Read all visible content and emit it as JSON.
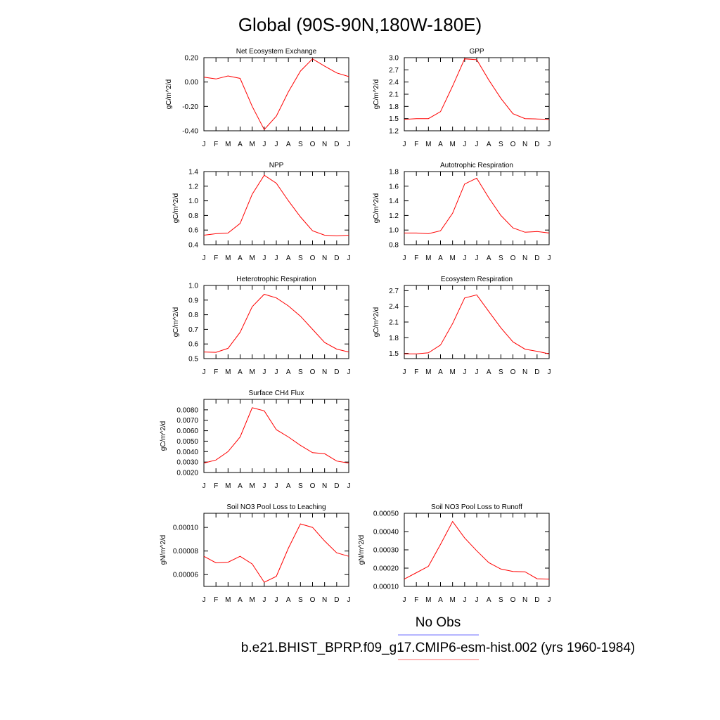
{
  "title": "Global (90S-90N,180W-180E)",
  "legend": [
    {
      "label": "No Obs",
      "color": "#6b6bff"
    },
    {
      "label": "b.e21.BHIST_BPRP.f09_g17.CMIP6-esm-hist.002 (yrs 1960-1984)",
      "color": "#ff6b6b"
    }
  ],
  "months": [
    "J",
    "F",
    "M",
    "A",
    "M",
    "J",
    "J",
    "A",
    "S",
    "O",
    "N",
    "D",
    "J"
  ],
  "line_color": "#ff0000",
  "chart_data": [
    {
      "type": "line",
      "title": "Net Ecosystem Exchange",
      "ylabel": "gC/m^2/d",
      "ylim": [
        -0.4,
        0.2
      ],
      "yticks": [
        "0.20",
        "0.00",
        "-0.20",
        "-0.40"
      ],
      "ytick_values": [
        0.2,
        0.0,
        -0.2,
        -0.4
      ],
      "values": [
        0.04,
        0.025,
        0.05,
        0.03,
        -0.2,
        -0.39,
        -0.28,
        -0.08,
        0.09,
        0.19,
        0.13,
        0.075,
        0.045
      ]
    },
    {
      "type": "line",
      "title": "GPP",
      "ylabel": "gC/m^2/d",
      "ylim": [
        1.2,
        3.0
      ],
      "yticks": [
        "3.0",
        "2.7",
        "2.4",
        "2.1",
        "1.8",
        "1.5",
        "1.2"
      ],
      "ytick_values": [
        3.0,
        2.7,
        2.4,
        2.1,
        1.8,
        1.5,
        1.2
      ],
      "values": [
        1.48,
        1.5,
        1.5,
        1.67,
        2.3,
        2.97,
        2.95,
        2.45,
        2.0,
        1.62,
        1.5,
        1.49,
        1.48
      ]
    },
    {
      "type": "line",
      "title": "NPP",
      "ylabel": "gC/m^2/d",
      "ylim": [
        0.4,
        1.4
      ],
      "yticks": [
        "1.4",
        "1.2",
        "1.0",
        "0.8",
        "0.6",
        "0.4"
      ],
      "ytick_values": [
        1.4,
        1.2,
        1.0,
        0.8,
        0.6,
        0.4
      ],
      "values": [
        0.53,
        0.55,
        0.56,
        0.69,
        1.09,
        1.35,
        1.24,
        1.0,
        0.78,
        0.59,
        0.53,
        0.52,
        0.53
      ]
    },
    {
      "type": "line",
      "title": "Autotrophic Respiration",
      "ylabel": "gC/m^2/d",
      "ylim": [
        0.8,
        1.8
      ],
      "yticks": [
        "1.8",
        "1.6",
        "1.4",
        "1.2",
        "1.0",
        "0.8"
      ],
      "ytick_values": [
        1.8,
        1.6,
        1.4,
        1.2,
        1.0,
        0.8
      ],
      "values": [
        0.96,
        0.96,
        0.95,
        0.99,
        1.23,
        1.63,
        1.71,
        1.44,
        1.2,
        1.03,
        0.97,
        0.98,
        0.96
      ]
    },
    {
      "type": "line",
      "title": "Heterotrophic Respiration",
      "ylabel": "gC/m^2/d",
      "ylim": [
        0.5,
        1.0
      ],
      "yticks": [
        "1.0",
        "0.9",
        "0.8",
        "0.7",
        "0.6",
        "0.5"
      ],
      "ytick_values": [
        1.0,
        0.9,
        0.8,
        0.7,
        0.6,
        0.5
      ],
      "values": [
        0.545,
        0.543,
        0.57,
        0.68,
        0.855,
        0.94,
        0.915,
        0.86,
        0.79,
        0.7,
        0.61,
        0.565,
        0.545
      ]
    },
    {
      "type": "line",
      "title": "Ecosystem Respiration",
      "ylabel": "gC/m^2/d",
      "ylim": [
        1.4,
        2.8
      ],
      "yticks": [
        "2.7",
        "2.4",
        "2.1",
        "1.8",
        "1.5"
      ],
      "ytick_values": [
        2.7,
        2.4,
        2.1,
        1.8,
        1.5
      ],
      "values": [
        1.49,
        1.49,
        1.51,
        1.66,
        2.07,
        2.56,
        2.62,
        2.3,
        1.99,
        1.72,
        1.58,
        1.54,
        1.49
      ]
    },
    {
      "type": "line",
      "title": "Surface CH4 Flux",
      "ylabel": "gC/m^2/d",
      "ylim": [
        0.002,
        0.009
      ],
      "yticks": [
        "0.0080",
        "0.0070",
        "0.0060",
        "0.0050",
        "0.0040",
        "0.0030",
        "0.0020"
      ],
      "ytick_values": [
        0.008,
        0.007,
        0.006,
        0.005,
        0.004,
        0.003,
        0.002
      ],
      "values": [
        0.0029,
        0.0032,
        0.004,
        0.0054,
        0.0082,
        0.0079,
        0.0061,
        0.0054,
        0.0046,
        0.0039,
        0.0038,
        0.0031,
        0.0029
      ]
    },
    {
      "type": "line",
      "title": "Soil NO3 Pool Loss to Leaching",
      "ylabel": "gN/m^2/d",
      "ylim": [
        5e-05,
        0.000112
      ],
      "yticks": [
        "0.00010",
        "0.00008",
        "0.00006"
      ],
      "ytick_values": [
        0.0001,
        8e-05,
        6e-05
      ],
      "values": [
        7.55e-05,
        7e-05,
        7.05e-05,
        7.55e-05,
        6.9e-05,
        5.35e-05,
        5.85e-05,
        8.25e-05,
        0.000103,
        0.0001,
        8.85e-05,
        7.85e-05,
        7.55e-05
      ]
    },
    {
      "type": "line",
      "title": "Soil NO3 Pool Loss to Runoff",
      "ylabel": "gN/m^2/d",
      "ylim": [
        0.0001,
        0.0005
      ],
      "yticks": [
        "0.00050",
        "0.00040",
        "0.00030",
        "0.00020",
        "0.00010"
      ],
      "ytick_values": [
        0.0005,
        0.0004,
        0.0003,
        0.0002,
        0.0001
      ],
      "values": [
        0.00014,
        0.000175,
        0.00021,
        0.00033,
        0.000455,
        0.000365,
        0.000295,
        0.00023,
        0.000195,
        0.000182,
        0.00018,
        0.000142,
        0.00014
      ]
    }
  ]
}
